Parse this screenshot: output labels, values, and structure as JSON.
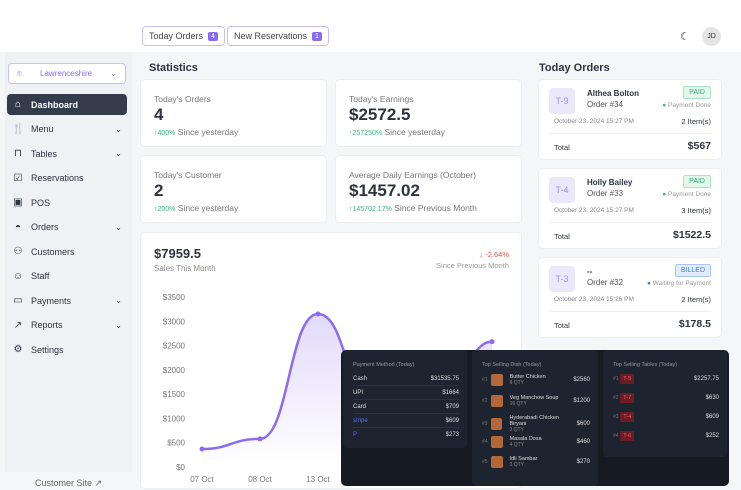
{
  "topbar": {
    "today_orders": "Today Orders",
    "today_orders_count": "4",
    "new_reservations": "New Reservations",
    "new_reservations_count": "1",
    "avatar": "JD"
  },
  "sidebar": {
    "location": "Lawrenceshire",
    "items": [
      {
        "label": "Dashboard",
        "icon": "home-icon"
      },
      {
        "label": "Menu",
        "icon": "menu-icon"
      },
      {
        "label": "Tables",
        "icon": "table-icon"
      },
      {
        "label": "Reservations",
        "icon": "calendar-icon"
      },
      {
        "label": "POS",
        "icon": "pos-icon"
      },
      {
        "label": "Orders",
        "icon": "orders-icon"
      },
      {
        "label": "Customers",
        "icon": "customers-icon"
      },
      {
        "label": "Staff",
        "icon": "staff-icon"
      },
      {
        "label": "Payments",
        "icon": "payments-icon"
      },
      {
        "label": "Reports",
        "icon": "reports-icon"
      },
      {
        "label": "Settings",
        "icon": "gear-icon"
      }
    ],
    "customer_site": "Customer Site"
  },
  "stats": {
    "title": "Statistics",
    "cards": [
      {
        "label": "Today's Orders",
        "value": "4",
        "change": "↑400%",
        "since": "Since yesterday"
      },
      {
        "label": "Today's Earnings",
        "value": "$2572.5",
        "change": "↑257250%",
        "since": "Since yesterday"
      },
      {
        "label": "Today's Customer",
        "value": "2",
        "change": "↑200%",
        "since": "Since yesterday"
      },
      {
        "label": "Average Daily Earnings (October)",
        "value": "$1457.02",
        "change": "↑145702.17%",
        "since": "Since Previous Month"
      }
    ]
  },
  "sales": {
    "value": "$7959.5",
    "label": "Sales This Month",
    "change": "↓ -2.64%",
    "since": "Since Previous Month"
  },
  "chart_data": {
    "type": "area",
    "x": [
      "07 Oct",
      "08 Oct",
      "13 Oct",
      "",
      "",
      ""
    ],
    "values": [
      370,
      580,
      3150,
      1200,
      1000,
      2580
    ],
    "yticks": [
      "$0",
      "$500",
      "$1000",
      "$1500",
      "$2000",
      "$2500",
      "$3000",
      "$3500"
    ],
    "ylim": [
      0,
      3500
    ],
    "color": "#8b6cf0"
  },
  "orders": {
    "title": "Today Orders",
    "list": [
      {
        "table": "T-9",
        "name": "Althea Bolton",
        "order": "Order #34",
        "status": "PAID",
        "payment": "Payment Done",
        "date": "October 23, 2024 15:27 PM",
        "items": "2 Item(s)",
        "total_label": "Total",
        "total": "$567"
      },
      {
        "table": "T-4",
        "name": "Holly Bailey",
        "order": "Order #33",
        "status": "PAID",
        "payment": "Payment Done",
        "date": "October 23, 2024 15:27 PM",
        "items": "3 Item(s)",
        "total_label": "Total",
        "total": "$1522.5"
      },
      {
        "table": "T-3",
        "name": "--",
        "order": "Order #32",
        "status": "BILLED",
        "payment": "Waiting for Payment",
        "date": "October 23, 2024 15:26 PM",
        "items": "2 Item(s)",
        "total_label": "Total",
        "total": "$178.5"
      }
    ]
  },
  "overlay": {
    "payment": {
      "title": "Payment Method (Today)",
      "rows": [
        {
          "label": "Cash",
          "value": "$31535.75"
        },
        {
          "label": "UPI",
          "value": "$1664"
        },
        {
          "label": "Card",
          "value": "$709"
        },
        {
          "label": "stripe",
          "value": "$609"
        },
        {
          "label": "P",
          "value": "$273"
        }
      ]
    },
    "dishes": {
      "title": "Top Selling Dish (Today)",
      "rows": [
        {
          "rank": "#1",
          "name": "Butter Chicken",
          "qty": "8 QTY",
          "value": "$2560"
        },
        {
          "rank": "#2",
          "name": "Veg Manchow Soup",
          "qty": "16 QTY",
          "value": "$1200"
        },
        {
          "rank": "#3",
          "name": "Hyderabadi Chicken Biryani",
          "qty": "3 QTY",
          "value": "$600"
        },
        {
          "rank": "#4",
          "name": "Masala Dosa",
          "qty": "4 QTY",
          "value": "$460"
        },
        {
          "rank": "#5",
          "name": "Idli Sambar",
          "qty": "3 QTY",
          "value": "$270"
        }
      ]
    },
    "tables": {
      "title": "Top Selling Tables (Today)",
      "rows": [
        {
          "rank": "#1",
          "table": "T-5",
          "value": "$2257.75"
        },
        {
          "rank": "#2",
          "table": "T-7",
          "value": "$630"
        },
        {
          "rank": "#3",
          "table": "T-4",
          "value": "$609"
        },
        {
          "rank": "#4",
          "table": "T-6",
          "value": "$252"
        }
      ]
    }
  }
}
